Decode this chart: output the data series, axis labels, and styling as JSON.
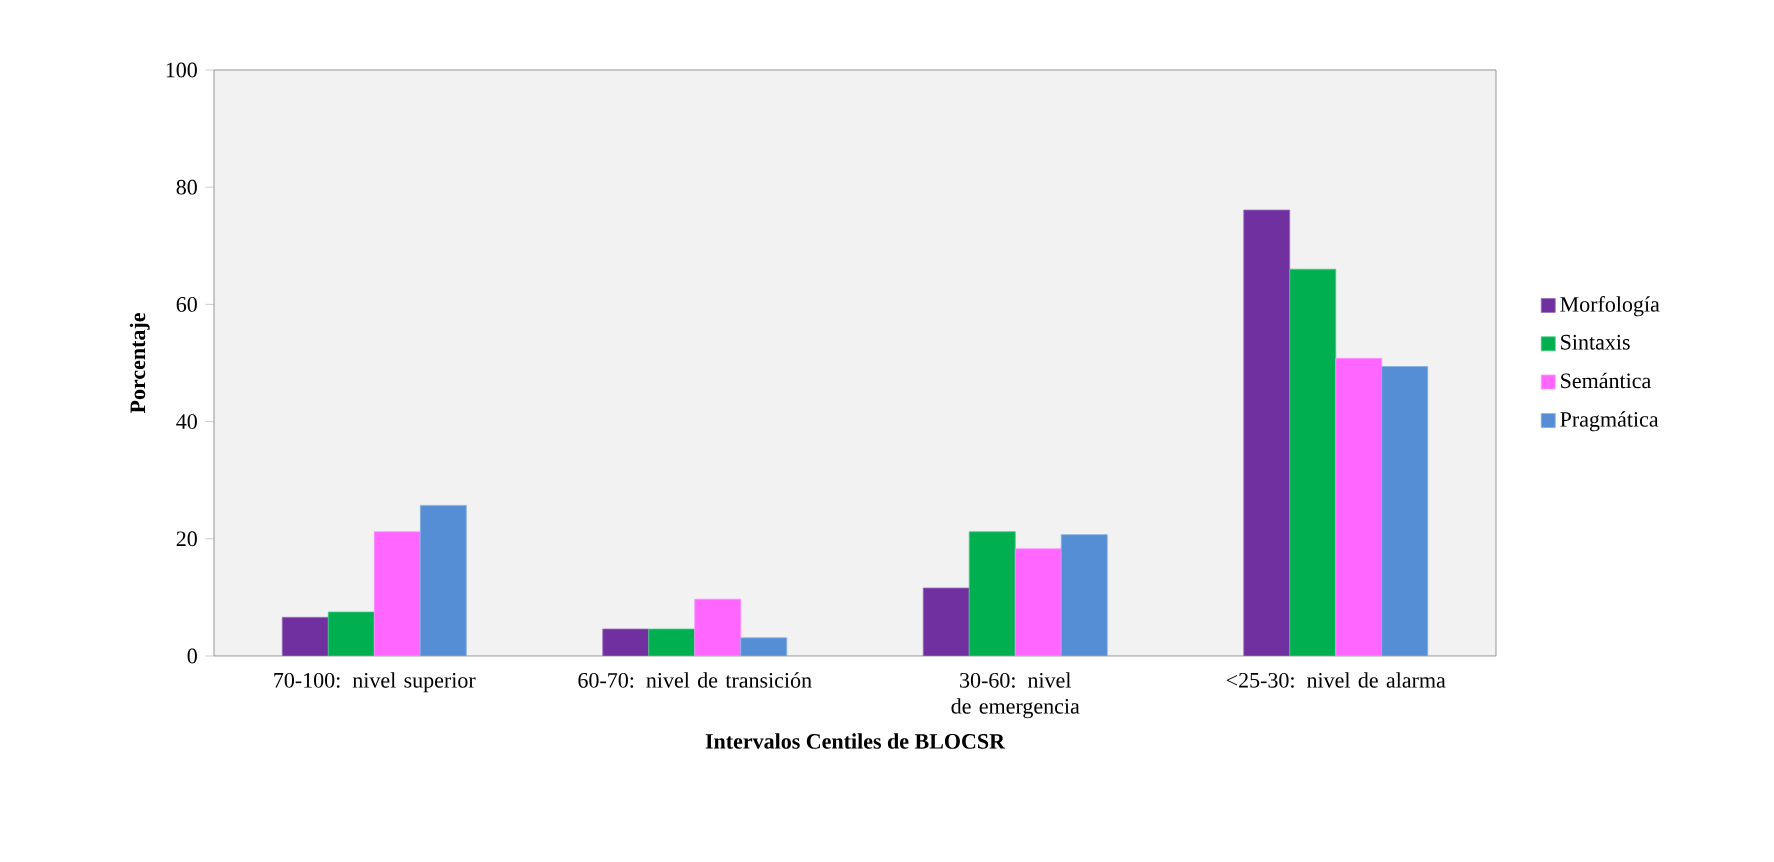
{
  "chart_data": {
    "type": "bar",
    "xlabel": "Intervalos Centiles de BLOCSR",
    "ylabel": "Porcentaje",
    "categories": [
      "70-100: nivel superior",
      "60-70: nivel de transición",
      "30-60: nivel de emergencia",
      "<25-30: nivel de alarma"
    ],
    "series": [
      {
        "name": "Morfología",
        "color": "#7030a0",
        "values": [
          6.6,
          4.6,
          11.6,
          76.1
        ]
      },
      {
        "name": "Sintaxis",
        "color": "#00b050",
        "values": [
          7.5,
          4.6,
          21.2,
          66.0
        ]
      },
      {
        "name": "Semántica",
        "color": "#ff66ff",
        "values": [
          21.2,
          9.7,
          18.3,
          50.8
        ]
      },
      {
        "name": "Pragmática",
        "color": "#558ed5",
        "values": [
          25.7,
          3.1,
          20.7,
          49.4
        ]
      }
    ],
    "ylim": [
      0,
      100
    ],
    "yticks": [
      0,
      20,
      40,
      60,
      80,
      100
    ],
    "legend": "right",
    "grid": false
  }
}
